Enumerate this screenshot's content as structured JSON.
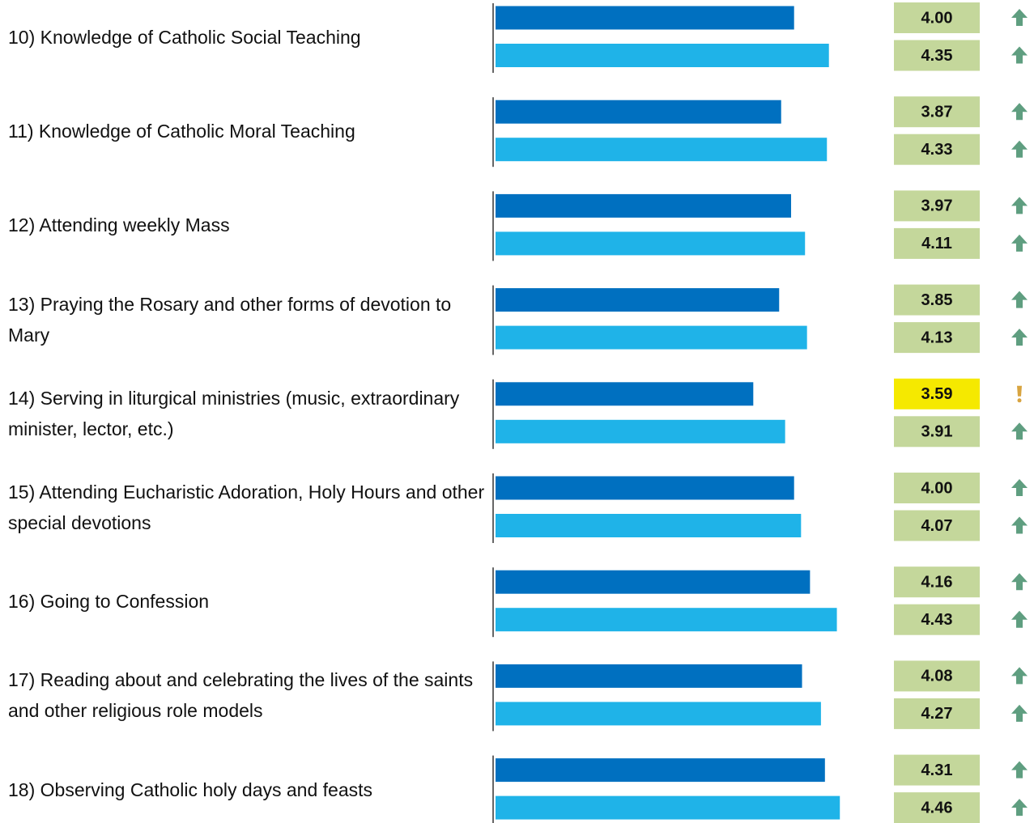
{
  "chart_data": {
    "type": "bar",
    "orientation": "horizontal",
    "categories": [
      "10) Knowledge of Catholic Social Teaching",
      "11) Knowledge of Catholic Moral Teaching",
      "12) Attending weekly Mass",
      "13) Praying the Rosary and other forms of devotion to Mary",
      "14) Serving in liturgical ministries (music, extraordinary minister, lector, etc.)",
      "15) Attending Eucharistic Adoration, Holy Hours and other special devotions",
      "16) Going to Confession",
      "17) Reading about and celebrating the lives of the saints and other religious role models",
      "18) Observing Catholic holy days and feasts"
    ],
    "xlim": [
      1,
      5
    ],
    "series": [
      {
        "color": "#0070c0",
        "values": [
          4.0,
          3.87,
          3.97,
          3.85,
          3.59,
          4.0,
          4.16,
          4.08,
          4.31
        ],
        "value_labels": [
          "4.00",
          "3.87",
          "3.97",
          "3.85",
          "3.59",
          "4.00",
          "4.16",
          "4.08",
          "4.31"
        ],
        "icons": [
          "up",
          "up",
          "up",
          "up",
          "alert",
          "up",
          "up",
          "up",
          "up"
        ]
      },
      {
        "color": "#1fb3e8",
        "values": [
          4.35,
          4.33,
          4.11,
          4.13,
          3.91,
          4.07,
          4.43,
          4.27,
          4.46
        ],
        "value_labels": [
          "4.35",
          "4.33",
          "4.11",
          "4.13",
          "3.91",
          "4.07",
          "4.43",
          "4.27",
          "4.46"
        ],
        "icons": [
          "up",
          "up",
          "up",
          "up",
          "up",
          "up",
          "up",
          "up",
          "up"
        ]
      }
    ],
    "box_color": "#c4d79b",
    "alert_box_color": "#f5e900",
    "icon_colors": {
      "up": "#5f9e80",
      "alert": "#d8a440"
    }
  }
}
